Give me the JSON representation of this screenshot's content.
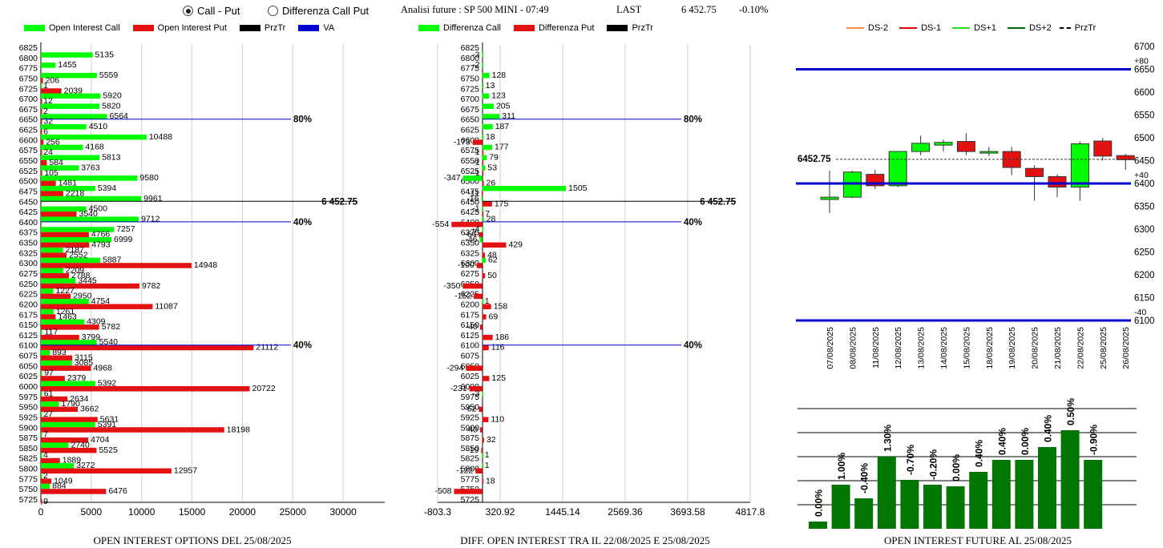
{
  "header": {
    "radio_call_put": "Call - Put",
    "radio_diff": "Differenza Call Put",
    "selected": "call_put",
    "title": "Analisi future : SP 500 MINI - 07:49",
    "last_label": "LAST",
    "last_value": "6 452.75",
    "last_change": "-0.10%"
  },
  "colors": {
    "green": "#00ff00",
    "red": "#e31111",
    "blue": "#0000cc",
    "black": "#000000",
    "dark_green": "#007700"
  },
  "legend_oi": [
    "Open Interest Call",
    "Open Interest Put",
    "PrzTr",
    "VA"
  ],
  "legend_diff": [
    "Differenza Call",
    "Differenza Put",
    "PrzTr"
  ],
  "legend_price": [
    "DS-2",
    "DS-1",
    "DS+1",
    "DS+2",
    "PrzTr"
  ],
  "captions": {
    "oi": "OPEN INTEREST OPTIONS DEL 25/08/2025",
    "diff": "DIFF. OPEN INTEREST TRA IL 22/08/2025 E 25/08/2025",
    "future": "OPEN INTEREST FUTURE AL 25/08/2025"
  },
  "chart_data": [
    {
      "type": "bar",
      "orientation": "horizontal",
      "strikes": [
        6825,
        6800,
        6775,
        6750,
        6725,
        6700,
        6675,
        6650,
        6625,
        6600,
        6575,
        6550,
        6525,
        6500,
        6475,
        6450,
        6425,
        6400,
        6375,
        6350,
        6325,
        6300,
        6275,
        6250,
        6225,
        6200,
        6175,
        6150,
        6125,
        6100,
        6075,
        6050,
        6025,
        6000,
        5975,
        5950,
        5925,
        5900,
        5875,
        5850,
        5825,
        5800,
        5775,
        5750,
        5725
      ],
      "series": [
        {
          "name": "Open Interest Call",
          "values": [
            null,
            5135,
            1455,
            5559,
            1,
            5920,
            5820,
            6564,
            4510,
            10488,
            4168,
            5813,
            3763,
            9580,
            5394,
            9961,
            4500,
            9712,
            7257,
            6999,
            2187,
            5887,
            2209,
            3445,
            1227,
            4754,
            1261,
            4309,
            117,
            5540,
            893,
            3085,
            97,
            5392,
            61,
            1790,
            27,
            5391,
            7,
            2740,
            4,
            3272,
            2,
            884,
            null
          ]
        },
        {
          "name": "Open Interest Put",
          "values": [
            null,
            null,
            null,
            206,
            2039,
            12,
            2,
            32,
            6,
            256,
            24,
            584,
            105,
            1481,
            2218,
            null,
            3540,
            null,
            4766,
            4793,
            2552,
            14948,
            2788,
            9782,
            2950,
            11087,
            1463,
            5782,
            3799,
            21112,
            3115,
            4968,
            2379,
            20722,
            2634,
            3662,
            5631,
            18198,
            4704,
            5525,
            1889,
            12957,
            1049,
            6476,
            9
          ]
        }
      ],
      "przTr": {
        "value": "6452.75",
        "label": "6 452.75",
        "strike": 6450
      },
      "va_lines": [
        {
          "strike": 6650,
          "label": "80%"
        },
        {
          "strike": 6400,
          "label": "40%"
        },
        {
          "strike": 6100,
          "label": "40%"
        }
      ],
      "xticks": [
        0,
        5000,
        10000,
        15000,
        20000,
        25000,
        30000
      ],
      "xlim": [
        0,
        35000
      ]
    },
    {
      "type": "bar",
      "orientation": "horizontal",
      "strikes": [
        6825,
        6800,
        6775,
        6750,
        6725,
        6700,
        6675,
        6650,
        6625,
        6600,
        6575,
        6550,
        6525,
        6500,
        6475,
        6450,
        6425,
        6400,
        6375,
        6350,
        6325,
        6300,
        6275,
        6250,
        6225,
        6200,
        6175,
        6150,
        6125,
        6100,
        6075,
        6050,
        6025,
        6000,
        5975,
        5950,
        5925,
        5900,
        5875,
        5850,
        5825,
        5800,
        5775,
        5750,
        5725
      ],
      "series": [
        {
          "name": "Differenza Call",
          "values": [
            null,
            -3,
            -2,
            128,
            13,
            123,
            205,
            311,
            187,
            18,
            177,
            79,
            53,
            -347,
            1505,
            -16,
            -1,
            28,
            -4,
            -46,
            null,
            62,
            null,
            null,
            null,
            1,
            null,
            null,
            null,
            null,
            null,
            null,
            null,
            null,
            -3,
            null,
            null,
            null,
            null,
            null,
            1,
            1,
            null,
            null,
            null
          ]
        },
        {
          "name": "Differenza Put",
          "values": [
            null,
            null,
            null,
            null,
            null,
            null,
            null,
            null,
            null,
            -173,
            -1,
            -1,
            -1,
            26,
            -11,
            175,
            7,
            -554,
            -64,
            429,
            48,
            -100,
            50,
            -350,
            -152,
            158,
            69,
            -40,
            186,
            116,
            null,
            -294,
            125,
            -231,
            null,
            -62,
            110,
            -40,
            32,
            -19,
            null,
            -122,
            18,
            -508,
            null
          ]
        }
      ],
      "przTr": {
        "label": "6 452.75",
        "strike": 6450
      },
      "va_lines": [
        {
          "strike": 6650,
          "label": "80%"
        },
        {
          "strike": 6400,
          "label": "40%"
        },
        {
          "strike": 6100,
          "label": "40%"
        }
      ],
      "xticks": [
        "-803.3",
        "320.92",
        "1445.14",
        "2569.36",
        "3693.58",
        "4817.8"
      ],
      "xlim": [
        -803.3,
        4817.8
      ]
    },
    {
      "type": "candlestick",
      "dates": [
        "07/08/2025",
        "08/08/2025",
        "11/08/2025",
        "12/08/2025",
        "13/08/2025",
        "14/08/2025",
        "15/08/2025",
        "18/08/2025",
        "19/08/2025",
        "20/08/2025",
        "21/08/2025",
        "22/08/2025",
        "25/08/2025",
        "26/08/2025"
      ],
      "candles": [
        {
          "o": 6365,
          "h": 6428,
          "l": 6335,
          "c": 6370
        },
        {
          "o": 6370,
          "h": 6428,
          "l": 6368,
          "c": 6425
        },
        {
          "o": 6420,
          "h": 6430,
          "l": 6388,
          "c": 6395
        },
        {
          "o": 6395,
          "h": 6470,
          "l": 6392,
          "c": 6470
        },
        {
          "o": 6470,
          "h": 6505,
          "l": 6462,
          "c": 6488
        },
        {
          "o": 6484,
          "h": 6496,
          "l": 6470,
          "c": 6490
        },
        {
          "o": 6492,
          "h": 6510,
          "l": 6462,
          "c": 6470
        },
        {
          "o": 6468,
          "h": 6480,
          "l": 6460,
          "c": 6470
        },
        {
          "o": 6470,
          "h": 6480,
          "l": 6418,
          "c": 6435
        },
        {
          "o": 6433,
          "h": 6440,
          "l": 6362,
          "c": 6415
        },
        {
          "o": 6415,
          "h": 6420,
          "l": 6370,
          "c": 6392
        },
        {
          "o": 6392,
          "h": 6492,
          "l": 6362,
          "c": 6487
        },
        {
          "o": 6493,
          "h": 6500,
          "l": 6450,
          "c": 6460
        },
        {
          "o": 6461,
          "h": 6465,
          "l": 6430,
          "c": 6452
        }
      ],
      "przTr": {
        "value": 6452.75,
        "label": "6452.75"
      },
      "lines": [
        {
          "value": 6650,
          "label": "+80"
        },
        {
          "value": 6400,
          "label": "+40"
        },
        {
          "value": 6100,
          "label": "-40"
        }
      ],
      "yticks": [
        6700,
        6650,
        6600,
        6550,
        6500,
        6450,
        6400,
        6350,
        6300,
        6250,
        6200,
        6150,
        6100
      ],
      "ylim": [
        6100,
        6700
      ]
    },
    {
      "type": "bar",
      "values": [
        0.9,
        5.5,
        3.8,
        9.0,
        6.1,
        5.5,
        5.3,
        7.1,
        8.6,
        8.6,
        10.2,
        12.3,
        8.6
      ],
      "labels": [
        "0.00%",
        "1.00%",
        "-0.40%",
        "1.30%",
        "-0.70%",
        "-0.20%",
        "0.00%",
        "0.40%",
        "0.40%",
        "0.00%",
        "0.40%",
        "0.50%",
        "-0.90%"
      ]
    }
  ]
}
